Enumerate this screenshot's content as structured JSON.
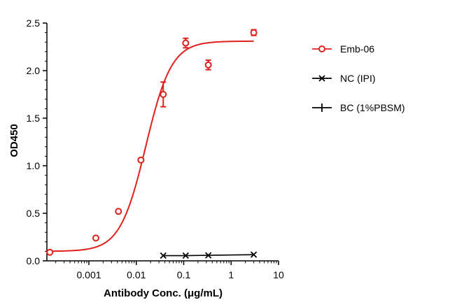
{
  "chart_data": {
    "type": "scatter",
    "xlabel": "Antibody Conc. (μg/mL)",
    "ylabel": "OD450",
    "x_scale": "log",
    "xlim": [
      0.00013,
      10
    ],
    "ylim": [
      0,
      2.5
    ],
    "x_ticks": [
      0.001,
      0.01,
      0.1,
      1,
      10
    ],
    "x_tick_labels": [
      "0.001",
      "0.01",
      "0.1",
      "1",
      "10"
    ],
    "y_ticks": [
      0,
      0.5,
      1.0,
      1.5,
      2.0,
      2.5
    ],
    "y_tick_labels": [
      "0.0",
      "0.5",
      "1.0",
      "1.5",
      "2.0",
      "2.5"
    ],
    "legend_position": "right",
    "series": [
      {
        "name": "Emb-06",
        "color": "#e0201c",
        "marker": "open-circle",
        "fit": "sigmoidal",
        "points": [
          {
            "x": 0.00015,
            "y": 0.09,
            "err": 0.0
          },
          {
            "x": 0.0014,
            "y": 0.24,
            "err": 0.0
          },
          {
            "x": 0.0042,
            "y": 0.52,
            "err": 0.0
          },
          {
            "x": 0.0125,
            "y": 1.06,
            "err": 0.0
          },
          {
            "x": 0.037,
            "y": 1.75,
            "err": 0.13
          },
          {
            "x": 0.11,
            "y": 2.29,
            "err": 0.05
          },
          {
            "x": 0.33,
            "y": 2.06,
            "err": 0.05
          },
          {
            "x": 3.0,
            "y": 2.4,
            "err": 0.03
          }
        ],
        "fit_params": {
          "bottom": 0.1,
          "top": 2.31,
          "log_ec50": -1.8,
          "hill": 1.6
        }
      },
      {
        "name": "NC (IPI)",
        "color": "#000000",
        "marker": "x",
        "fit": "line",
        "points": [
          {
            "x": 0.037,
            "y": 0.055
          },
          {
            "x": 0.11,
            "y": 0.055
          },
          {
            "x": 0.33,
            "y": 0.058
          },
          {
            "x": 3.0,
            "y": 0.065
          }
        ]
      },
      {
        "name": "BC (1%PBSM)",
        "color": "#000000",
        "marker": "plus",
        "fit": "none",
        "points": []
      }
    ]
  }
}
